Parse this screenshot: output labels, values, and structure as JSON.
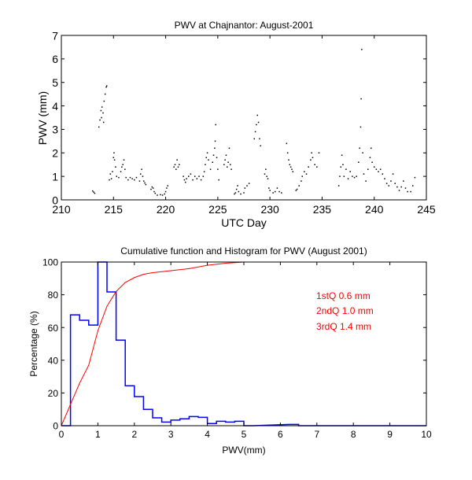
{
  "chart_data": [
    {
      "type": "scatter",
      "title": "PWV at Chajnantor: August-2001",
      "xlabel": "UTC Day",
      "ylabel": "PWV (mm)",
      "xlim": [
        210,
        245
      ],
      "ylim": [
        0,
        7
      ],
      "xticks": [
        "210",
        "215",
        "220",
        "225",
        "230",
        "235",
        "240",
        "245"
      ],
      "yticks": [
        "0",
        "1",
        "2",
        "3",
        "4",
        "5",
        "6",
        "7"
      ],
      "grid": false,
      "marker_color": "#000000",
      "points": [
        [
          213.0,
          0.38
        ],
        [
          213.1,
          0.33
        ],
        [
          213.2,
          0.28
        ],
        [
          213.6,
          3.1
        ],
        [
          213.7,
          3.4
        ],
        [
          213.8,
          3.8
        ],
        [
          213.85,
          3.5
        ],
        [
          213.9,
          3.95
        ],
        [
          214.0,
          3.7
        ],
        [
          214.05,
          3.3
        ],
        [
          214.1,
          4.2
        ],
        [
          214.2,
          4.5
        ],
        [
          214.3,
          4.8
        ],
        [
          214.35,
          4.85
        ],
        [
          214.6,
          0.85
        ],
        [
          214.7,
          1.1
        ],
        [
          214.8,
          0.9
        ],
        [
          214.9,
          1.2
        ],
        [
          215.0,
          1.8
        ],
        [
          215.05,
          2.0
        ],
        [
          215.1,
          1.7
        ],
        [
          215.2,
          1.4
        ],
        [
          215.3,
          1.0
        ],
        [
          215.5,
          0.95
        ],
        [
          215.7,
          1.2
        ],
        [
          215.8,
          1.4
        ],
        [
          215.9,
          1.5
        ],
        [
          216.0,
          1.7
        ],
        [
          216.1,
          1.3
        ],
        [
          216.2,
          0.95
        ],
        [
          216.4,
          0.85
        ],
        [
          216.6,
          0.95
        ],
        [
          216.8,
          0.9
        ],
        [
          217.0,
          0.85
        ],
        [
          217.2,
          0.95
        ],
        [
          217.5,
          0.8
        ],
        [
          217.6,
          1.1
        ],
        [
          217.7,
          1.3
        ],
        [
          217.8,
          1.0
        ],
        [
          217.9,
          0.8
        ],
        [
          218.0,
          0.72
        ],
        [
          218.1,
          0.65
        ],
        [
          218.6,
          0.45
        ],
        [
          218.7,
          0.55
        ],
        [
          218.8,
          0.5
        ],
        [
          218.9,
          0.35
        ],
        [
          219.0,
          0.28
        ],
        [
          219.2,
          0.2
        ],
        [
          219.5,
          0.22
        ],
        [
          219.7,
          0.2
        ],
        [
          219.9,
          0.25
        ],
        [
          220.0,
          0.35
        ],
        [
          220.1,
          0.5
        ],
        [
          220.2,
          0.6
        ],
        [
          220.8,
          1.4
        ],
        [
          220.9,
          1.5
        ],
        [
          221.0,
          1.3
        ],
        [
          221.1,
          1.7
        ],
        [
          221.2,
          1.4
        ],
        [
          221.3,
          1.5
        ],
        [
          221.7,
          1.0
        ],
        [
          221.8,
          0.85
        ],
        [
          221.9,
          0.75
        ],
        [
          222.0,
          0.9
        ],
        [
          222.2,
          1.0
        ],
        [
          222.4,
          1.1
        ],
        [
          222.6,
          0.85
        ],
        [
          222.8,
          1.0
        ],
        [
          223.0,
          0.9
        ],
        [
          223.2,
          1.0
        ],
        [
          223.4,
          0.85
        ],
        [
          223.6,
          1.0
        ],
        [
          223.7,
          1.2
        ],
        [
          223.8,
          1.5
        ],
        [
          223.9,
          1.8
        ],
        [
          224.0,
          2.0
        ],
        [
          224.1,
          1.7
        ],
        [
          224.3,
          1.3
        ],
        [
          224.5,
          1.6
        ],
        [
          224.6,
          1.9
        ],
        [
          224.7,
          2.2
        ],
        [
          224.75,
          2.5
        ],
        [
          224.8,
          3.2
        ],
        [
          224.9,
          1.8
        ],
        [
          225.0,
          1.3
        ],
        [
          225.1,
          0.85
        ],
        [
          225.6,
          1.5
        ],
        [
          225.7,
          1.7
        ],
        [
          225.8,
          1.9
        ],
        [
          225.9,
          1.4
        ],
        [
          226.0,
          1.6
        ],
        [
          226.1,
          2.2
        ],
        [
          226.2,
          1.5
        ],
        [
          226.3,
          1.3
        ],
        [
          226.6,
          0.25
        ],
        [
          226.7,
          0.3
        ],
        [
          226.8,
          0.45
        ],
        [
          226.9,
          0.6
        ],
        [
          227.0,
          0.35
        ],
        [
          227.2,
          0.25
        ],
        [
          227.5,
          0.3
        ],
        [
          227.6,
          0.5
        ],
        [
          227.8,
          0.6
        ],
        [
          228.0,
          0.7
        ],
        [
          228.5,
          2.6
        ],
        [
          228.6,
          2.9
        ],
        [
          228.7,
          3.2
        ],
        [
          228.8,
          3.6
        ],
        [
          228.9,
          3.3
        ],
        [
          229.0,
          2.6
        ],
        [
          229.1,
          2.3
        ],
        [
          229.5,
          1.1
        ],
        [
          229.6,
          1.3
        ],
        [
          229.7,
          1.0
        ],
        [
          229.8,
          0.9
        ],
        [
          229.9,
          0.5
        ],
        [
          230.0,
          0.4
        ],
        [
          230.3,
          0.3
        ],
        [
          230.5,
          0.35
        ],
        [
          230.7,
          0.5
        ],
        [
          230.9,
          0.35
        ],
        [
          231.1,
          0.3
        ],
        [
          231.6,
          2.4
        ],
        [
          231.7,
          2.0
        ],
        [
          231.8,
          1.7
        ],
        [
          231.9,
          1.5
        ],
        [
          232.0,
          1.4
        ],
        [
          232.1,
          1.3
        ],
        [
          232.2,
          1.2
        ],
        [
          232.5,
          0.4
        ],
        [
          232.6,
          0.45
        ],
        [
          232.8,
          0.6
        ],
        [
          233.0,
          0.8
        ],
        [
          233.1,
          1.0
        ],
        [
          233.3,
          1.2
        ],
        [
          233.5,
          1.1
        ],
        [
          233.7,
          1.4
        ],
        [
          233.9,
          1.7
        ],
        [
          234.0,
          2.0
        ],
        [
          234.1,
          1.8
        ],
        [
          234.3,
          1.5
        ],
        [
          234.5,
          1.4
        ],
        [
          234.7,
          2.0
        ],
        [
          236.6,
          0.6
        ],
        [
          236.7,
          1.0
        ],
        [
          236.8,
          1.4
        ],
        [
          236.9,
          1.9
        ],
        [
          237.0,
          1.5
        ],
        [
          237.1,
          1.0
        ],
        [
          237.3,
          1.3
        ],
        [
          237.5,
          0.9
        ],
        [
          237.7,
          1.2
        ],
        [
          237.9,
          1.0
        ],
        [
          238.1,
          0.95
        ],
        [
          238.3,
          1.0
        ],
        [
          238.5,
          1.6
        ],
        [
          238.6,
          2.2
        ],
        [
          238.7,
          3.1
        ],
        [
          238.75,
          4.3
        ],
        [
          238.8,
          6.4
        ],
        [
          238.9,
          2.0
        ],
        [
          239.0,
          1.1
        ],
        [
          239.2,
          0.8
        ],
        [
          239.4,
          1.3
        ],
        [
          239.6,
          1.8
        ],
        [
          239.7,
          2.2
        ],
        [
          239.8,
          1.6
        ],
        [
          240.0,
          1.4
        ],
        [
          240.2,
          1.3
        ],
        [
          240.4,
          1.2
        ],
        [
          240.6,
          1.3
        ],
        [
          240.8,
          1.1
        ],
        [
          241.0,
          0.9
        ],
        [
          241.2,
          0.7
        ],
        [
          241.4,
          0.6
        ],
        [
          241.6,
          0.8
        ],
        [
          241.8,
          1.1
        ],
        [
          242.0,
          0.7
        ],
        [
          242.2,
          0.55
        ],
        [
          242.4,
          0.4
        ],
        [
          242.6,
          0.55
        ],
        [
          242.8,
          0.8
        ],
        [
          243.0,
          0.5
        ],
        [
          243.2,
          0.35
        ],
        [
          243.5,
          0.35
        ],
        [
          243.7,
          0.6
        ],
        [
          243.9,
          0.95
        ]
      ]
    },
    {
      "type": "bar",
      "subtype": "histogram+cumulative",
      "title": "Cumulative function and Histogram for PWV (August 2001)",
      "xlabel": "PWV(mm)",
      "ylabel": "Percentage (%)",
      "xlim": [
        0,
        10
      ],
      "ylim": [
        0,
        100
      ],
      "xticks": [
        "0",
        "1",
        "2",
        "3",
        "4",
        "5",
        "6",
        "7",
        "8",
        "9",
        "10"
      ],
      "yticks": [
        "0",
        "20",
        "40",
        "60",
        "80",
        "100"
      ],
      "grid": false,
      "histogram": {
        "color": "#0000ff",
        "bin_width": 0.25,
        "bin_starts": [
          0,
          0.25,
          0.5,
          0.75,
          1.0,
          1.25,
          1.5,
          1.75,
          2.0,
          2.25,
          2.5,
          2.75,
          3.0,
          3.25,
          3.5,
          3.75,
          4.0,
          4.25,
          4.5,
          4.75,
          5.0,
          6.25,
          6.5
        ],
        "values": [
          0,
          67.7,
          64.4,
          61.5,
          100,
          81.7,
          52.3,
          24.4,
          17.8,
          10.0,
          4.8,
          2.2,
          3.4,
          4.2,
          5.6,
          5.1,
          1.3,
          2.7,
          2.2,
          2.7,
          0,
          0.8,
          0
        ]
      },
      "cumulative": {
        "color": "#ff0000",
        "x": [
          0,
          0.25,
          0.5,
          0.75,
          1.0,
          1.25,
          1.5,
          1.75,
          2.0,
          2.25,
          2.5,
          3.0,
          3.5,
          4.0,
          4.5,
          5.0,
          6.0,
          10.0
        ],
        "y": [
          0,
          13,
          26,
          37,
          58,
          73,
          82,
          87.5,
          90.5,
          92.5,
          93.5,
          94.7,
          96,
          98,
          99.3,
          100,
          100,
          100
        ]
      },
      "annotations": [
        {
          "text": "1stQ 0.6 mm",
          "color": "#ff0000"
        },
        {
          "text": "2ndQ 1.0 mm",
          "color": "#ff0000"
        },
        {
          "text": "3rdQ 1.4 mm",
          "color": "#ff0000"
        }
      ]
    }
  ]
}
